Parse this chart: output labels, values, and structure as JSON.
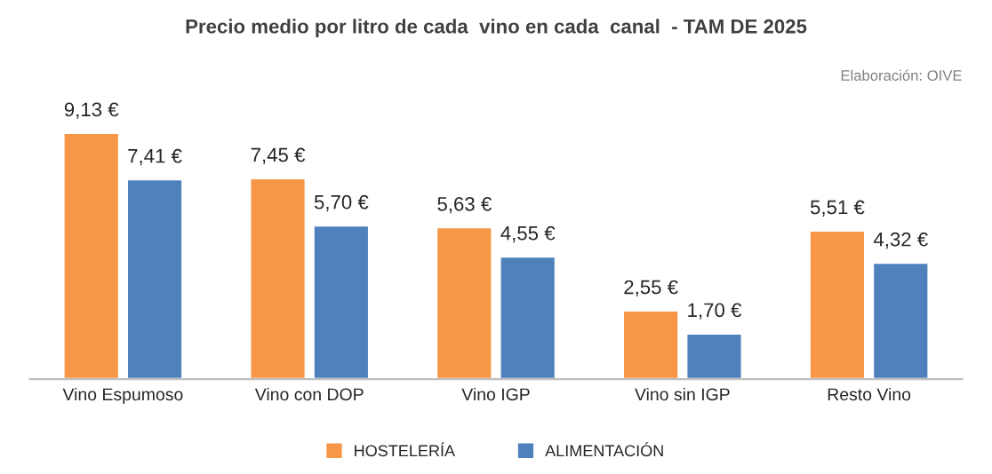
{
  "chart_data": {
    "type": "bar",
    "title": "Precio medio por litro de cada  vino en cada  canal  - TAM DE 2025",
    "categories": [
      "Vino Espumoso",
      "Vino con DOP",
      "Vino IGP",
      "Vino sin IGP",
      "Resto Vino"
    ],
    "series": [
      {
        "name": "HOSTELERÍA",
        "color": "#f79646",
        "values": [
          9.13,
          7.45,
          5.63,
          2.55,
          5.51
        ],
        "value_labels": [
          "9,13 €",
          "7,45 €",
          "5,63 €",
          "2,55 €",
          "5,51 €"
        ]
      },
      {
        "name": "ALIMENTACIÓN",
        "color": "#4f81bd",
        "values": [
          7.41,
          5.7,
          4.55,
          1.7,
          4.32
        ],
        "value_labels": [
          "7,41 €",
          "5,70 €",
          "4,55 €",
          "1,70 €",
          "4,32 €"
        ]
      }
    ],
    "annotations": [
      "Elaboración: OIVE"
    ],
    "legend": "bottom",
    "grid": false
  }
}
